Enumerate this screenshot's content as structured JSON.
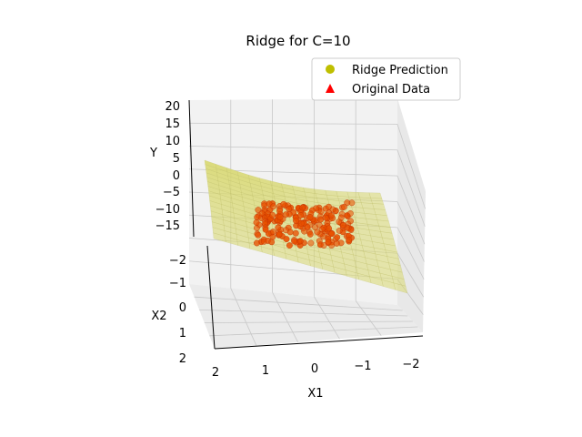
{
  "chart_data": {
    "type": "surface3d",
    "title": "Ridge for C=10",
    "xlabel": "X1",
    "ylabel": "X2",
    "zlabel": "Y",
    "x_ticks": [
      "2",
      "1",
      "0",
      "−1",
      "−2"
    ],
    "y_ticks": [
      "−2",
      "−1",
      "0",
      "1",
      "2"
    ],
    "z_ticks": [
      "20",
      "15",
      "10",
      "5",
      "0",
      "−5",
      "−10",
      "−15"
    ],
    "xlim": [
      -2,
      2
    ],
    "ylim": [
      -2,
      2
    ],
    "zlim": [
      -18,
      22
    ],
    "grid": true,
    "legend": {
      "position": "top-right",
      "entries": [
        {
          "label": "Ridge Prediction",
          "marker": "circle",
          "color": "#bfbf00"
        },
        {
          "label": "Original Data",
          "marker": "triangle",
          "color": "#ff0000"
        }
      ]
    },
    "series": [
      {
        "name": "Ridge Prediction",
        "kind": "surface",
        "color": "#d8d870"
      },
      {
        "name": "Original Data",
        "kind": "points",
        "color": "#e85000"
      }
    ]
  }
}
